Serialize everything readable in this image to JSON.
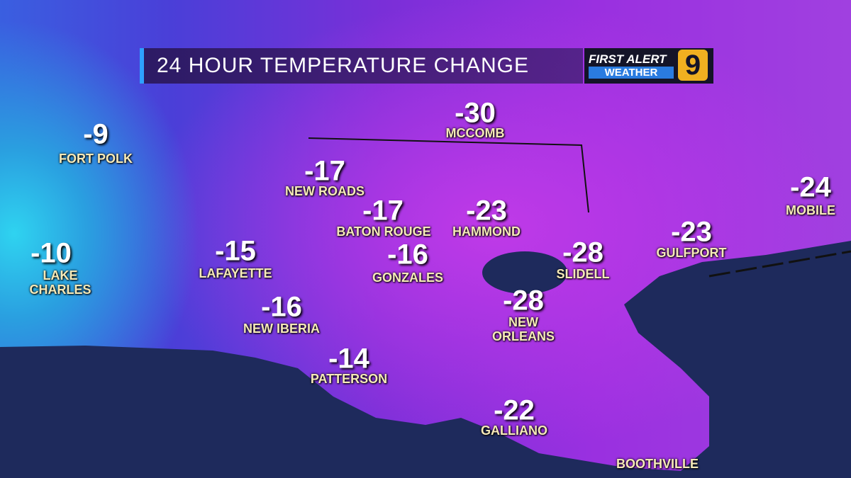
{
  "header": {
    "title": "24 HOUR TEMPERATURE CHANGE",
    "logo": {
      "line1": "FIRST ALERT",
      "line2": "WEATHER",
      "channel": "9"
    }
  },
  "cities": [
    {
      "label": "FORT POLK",
      "value": -9
    },
    {
      "label": "MCCOMB",
      "value": -30
    },
    {
      "label": "NEW ROADS",
      "value": -17
    },
    {
      "label": "BATON ROUGE",
      "value": -17
    },
    {
      "label": "HAMMOND",
      "value": -23
    },
    {
      "label": "MOBILE",
      "value": -24
    },
    {
      "label": "LAKE CHARLES",
      "value": -10
    },
    {
      "label": "LAFAYETTE",
      "value": -15
    },
    {
      "label": "GONZALES",
      "value": -16
    },
    {
      "label": "SLIDELL",
      "value": -28
    },
    {
      "label": "GULFPORT",
      "value": -23
    },
    {
      "label": "NEW IBERIA",
      "value": -16
    },
    {
      "label": "NEW ORLEANS",
      "value": -28
    },
    {
      "label": "PATTERSON",
      "value": -14
    },
    {
      "label": "GALLIANO",
      "value": -22
    },
    {
      "label": "BOOTHVILLE"
    }
  ]
}
